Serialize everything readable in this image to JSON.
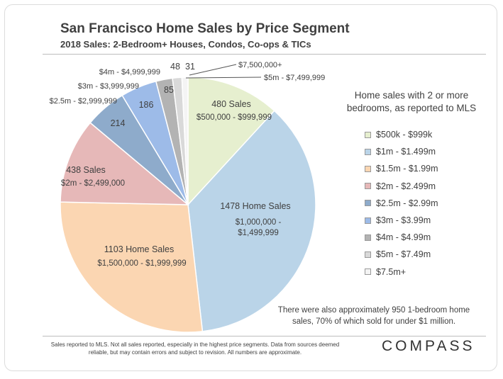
{
  "header": {
    "title": "San Francisco Home Sales by Price Segment",
    "subtitle": "2018 Sales: 2-Bedroom+ Houses, Condos, Co-ops & TICs"
  },
  "chart_data": {
    "type": "pie",
    "slices": [
      {
        "value": 480,
        "value_label": "480 Sales",
        "range_label": "$500,000 - $999,999",
        "legend": "$500k - $999k",
        "color": "#e6efcf"
      },
      {
        "value": 1478,
        "value_label": "1478 Home Sales",
        "range_label_lines": [
          "$1,000,000 -",
          "$1,499,999"
        ],
        "legend": "$1m - $1.499m",
        "color": "#bad4e8"
      },
      {
        "value": 1103,
        "value_label": "1103 Home Sales",
        "range_label": "$1,500,000 - $1,999,999",
        "legend": "$1.5m - $1.99m",
        "color": "#fbd6b2"
      },
      {
        "value": 438,
        "value_label": "438 Sales",
        "range_label": "$2m - $2,499,000",
        "legend": "$2m - $2.499m",
        "color": "#e6b8b8"
      },
      {
        "value": 214,
        "value_label": "214",
        "range_label": "$2.5m - $2,999,999",
        "legend": "$2.5m - $2.99m",
        "color": "#8eabcb"
      },
      {
        "value": 186,
        "value_label": "186",
        "range_label": "$3m - $3,999,999",
        "legend": "$3m - $3.99m",
        "color": "#9dbbe8"
      },
      {
        "value": 85,
        "value_label": "85",
        "range_label": "$4m - $4,999,999",
        "legend": "$4m - $4.99m",
        "color": "#b3b3b3"
      },
      {
        "value": 48,
        "value_label": "48",
        "range_label": "$5m - $7,499,999",
        "legend": "$5m - $7.49m",
        "color": "#d9d9d9"
      },
      {
        "value": 31,
        "value_label": "31",
        "range_label": "$7,500,000+",
        "legend": "$7.5m+",
        "color": "#f4f4f4"
      }
    ],
    "legend_title_lines": [
      "Home sales with 2 or more",
      "bedrooms, as reported to MLS"
    ],
    "legend_placement": "right"
  },
  "note_lines": [
    "There were also approximately 950 1-bedroom home",
    "sales, 70% of which sold for under $1 million."
  ],
  "footnote_lines": [
    "Sales reported to MLS. Not all sales reported, especially in the highest price segments. Data from sources deemed",
    "reliable, but may contain errors and subject to revision. All numbers are approximate."
  ],
  "logo": "COMPASS"
}
